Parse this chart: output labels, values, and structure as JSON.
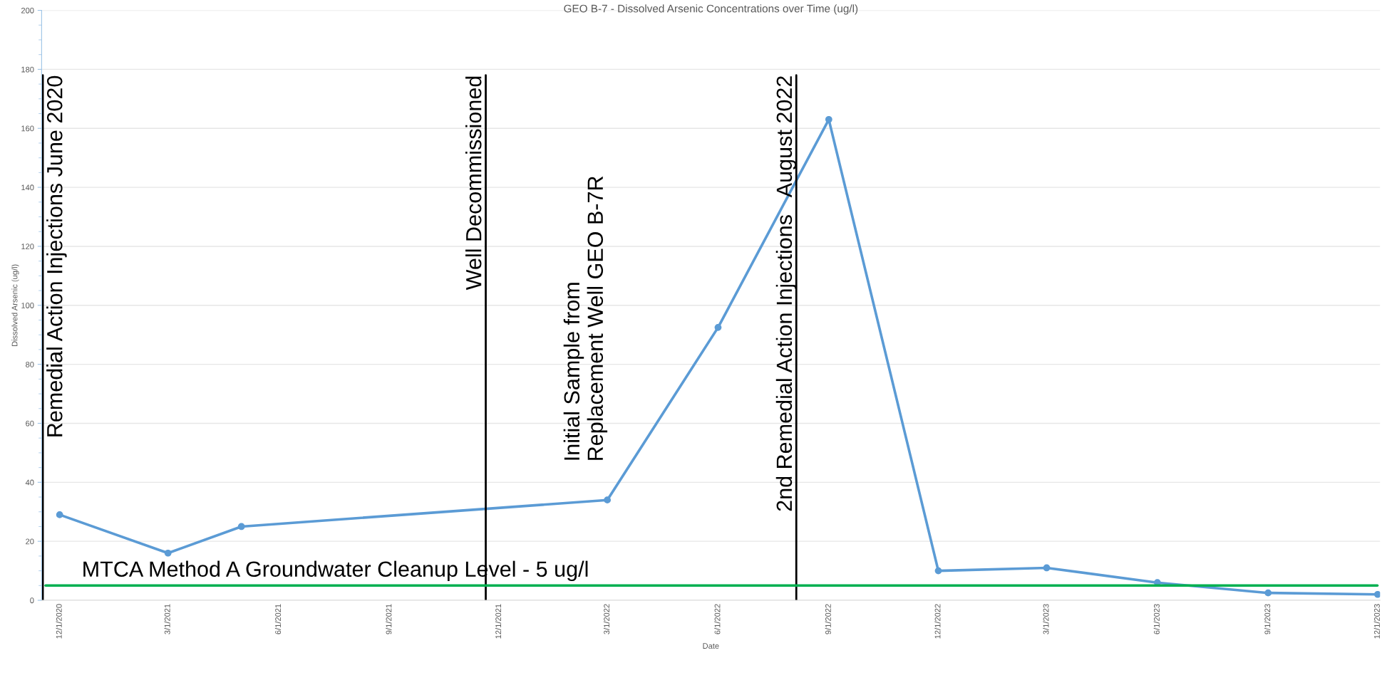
{
  "chart_data": {
    "type": "line",
    "title": "GEO B-7 - Dissolved Arsenic Concentrations over Time (ug/l)",
    "xlabel": "Date",
    "ylabel": "Dissolved Arsenic (ug/l)",
    "x": [
      "2020-12-01",
      "2021-03-01",
      "2021-05-01",
      "2022-03-01",
      "2022-06-01",
      "2022-09-01",
      "2022-12-01",
      "2023-03-01",
      "2023-06-01",
      "2023-09-01",
      "2023-12-01"
    ],
    "series": [
      {
        "color": "#5b9bd5",
        "values": [
          29,
          16,
          25,
          34,
          92.5,
          163,
          10,
          11,
          6,
          2.5,
          2
        ]
      }
    ],
    "marker": "circle",
    "line_style": "solid",
    "grid": "y",
    "legend": false,
    "xlim": [
      "2020-11-16",
      "2023-12-03"
    ],
    "ylim": [
      0,
      200
    ],
    "yticks": [
      0,
      20,
      40,
      60,
      80,
      100,
      120,
      140,
      160,
      180,
      200
    ],
    "xticks": [
      {
        "value": "2020-12-01",
        "label": "12/1/2020"
      },
      {
        "value": "2021-03-01",
        "label": "3/1/2021"
      },
      {
        "value": "2021-06-01",
        "label": "6/1/2021"
      },
      {
        "value": "2021-09-01",
        "label": "9/1/2021"
      },
      {
        "value": "2021-12-01",
        "label": "12/1/2021"
      },
      {
        "value": "2022-03-01",
        "label": "3/1/2022"
      },
      {
        "value": "2022-06-01",
        "label": "6/1/2022"
      },
      {
        "value": "2022-09-01",
        "label": "9/1/2022"
      },
      {
        "value": "2022-12-01",
        "label": "12/1/2022"
      },
      {
        "value": "2023-03-01",
        "label": "3/1/2023"
      },
      {
        "value": "2023-06-01",
        "label": "6/1/2023"
      },
      {
        "value": "2023-09-01",
        "label": "9/1/2023"
      },
      {
        "value": "2023-12-01",
        "label": "12/1/2023"
      }
    ],
    "ref_lines": [
      {
        "axis": "x",
        "value": "2020-11-17",
        "label": "Remedial Action Injections June 2020",
        "color": "#000000"
      },
      {
        "axis": "x",
        "value": "2021-11-20",
        "label": "Well Decommissioned",
        "color": "#000000"
      },
      {
        "axis": "x",
        "value": "2022-08-05",
        "label": "2nd Remedial Action Injections   August 2022",
        "color": "#000000"
      },
      {
        "axis": "y",
        "value": 5,
        "label": "MTCA Method A Groundwater Cleanup Level - 5 ug/l",
        "color": "#00b050"
      }
    ],
    "annotations": [
      {
        "text": "Initial Sample from\nReplacement Well GEO B-7R",
        "x": "2022-03-01",
        "y": 34
      }
    ]
  }
}
